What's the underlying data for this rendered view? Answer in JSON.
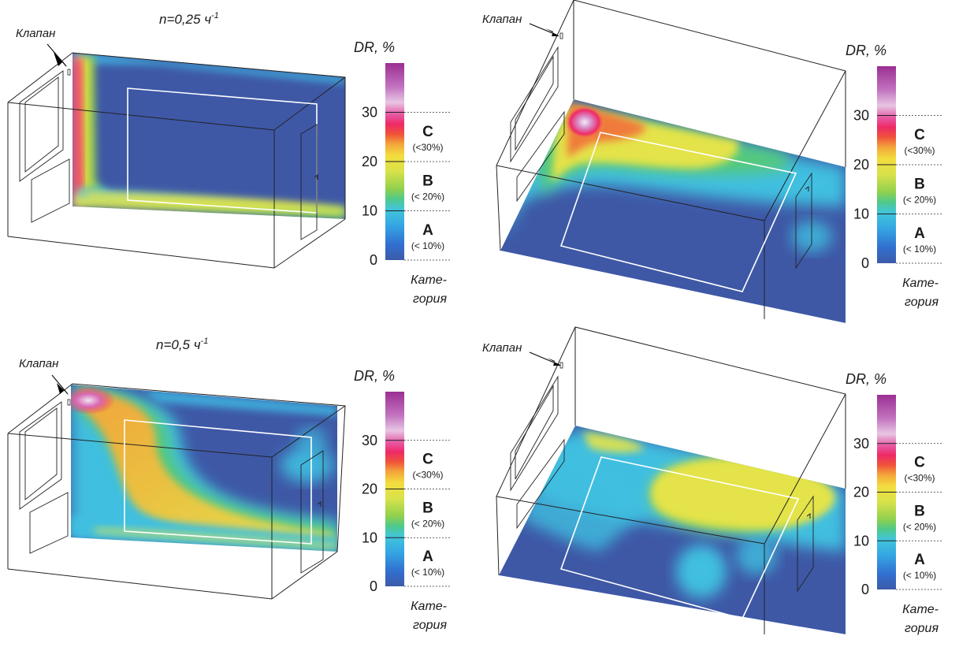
{
  "panels": [
    {
      "id": "p1",
      "title": "n=0,25 ч",
      "title_sup": "-1",
      "valve_label": "Клапан",
      "view": "vertical-section"
    },
    {
      "id": "p2",
      "title": "",
      "title_sup": "",
      "valve_label": "Клапан",
      "view": "horizontal-section"
    },
    {
      "id": "p3",
      "title": "n=0,5 ч",
      "title_sup": "-1",
      "valve_label": "Клапан",
      "view": "vertical-section"
    },
    {
      "id": "p4",
      "title": "",
      "title_sup": "",
      "valve_label": "Клапан",
      "view": "horizontal-section"
    }
  ],
  "legend": {
    "title": "DR, %",
    "ticks": [
      "0",
      "10",
      "20",
      "30"
    ],
    "categories": [
      {
        "letter": "C",
        "note": "(<30%)"
      },
      {
        "letter": "B",
        "note": "(< 20%)"
      },
      {
        "letter": "A",
        "note": "(< 10%)"
      }
    ],
    "footer_line1": "Кате-",
    "footer_line2": "гория",
    "colors": [
      "#3d5aa8",
      "#2f8fe0",
      "#3fc4e0",
      "#55c97a",
      "#9bd24a",
      "#e4e64a",
      "#f2c43a",
      "#f27a3a",
      "#ee2c5a",
      "#e84a9a",
      "#d8b8d8",
      "#a23a9a"
    ]
  }
}
